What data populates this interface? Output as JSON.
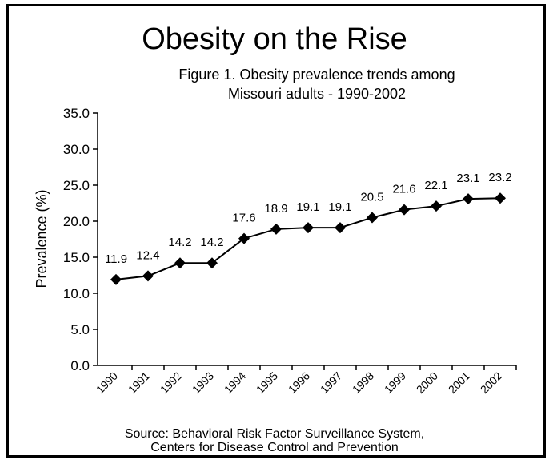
{
  "chart_data": {
    "type": "line",
    "title": "Obesity on the Rise",
    "subtitle": [
      "Figure 1. Obesity prevalence trends among",
      "Missouri adults - 1990-2002"
    ],
    "ylabel": "Prevalence (%)",
    "categories": [
      "1990",
      "1991",
      "1992",
      "1993",
      "1994",
      "1995",
      "1996",
      "1997",
      "1998",
      "1999",
      "2000",
      "2001",
      "2002"
    ],
    "values": [
      11.9,
      12.4,
      14.2,
      14.2,
      17.6,
      18.9,
      19.1,
      19.1,
      20.5,
      21.6,
      22.1,
      23.1,
      23.2
    ],
    "ylim": [
      0,
      35
    ],
    "yticks": [
      "0.0",
      "5.0",
      "10.0",
      "15.0",
      "20.0",
      "25.0",
      "30.0",
      "35.0"
    ],
    "data_labels": true,
    "marker": "diamond",
    "grid": false,
    "source": [
      "Source: Behavioral Risk Factor Surveillance System,",
      "Centers for Disease Control and Prevention"
    ]
  },
  "colors": {
    "line": "#000000",
    "frame": "#000000",
    "background": "#ffffff"
  }
}
